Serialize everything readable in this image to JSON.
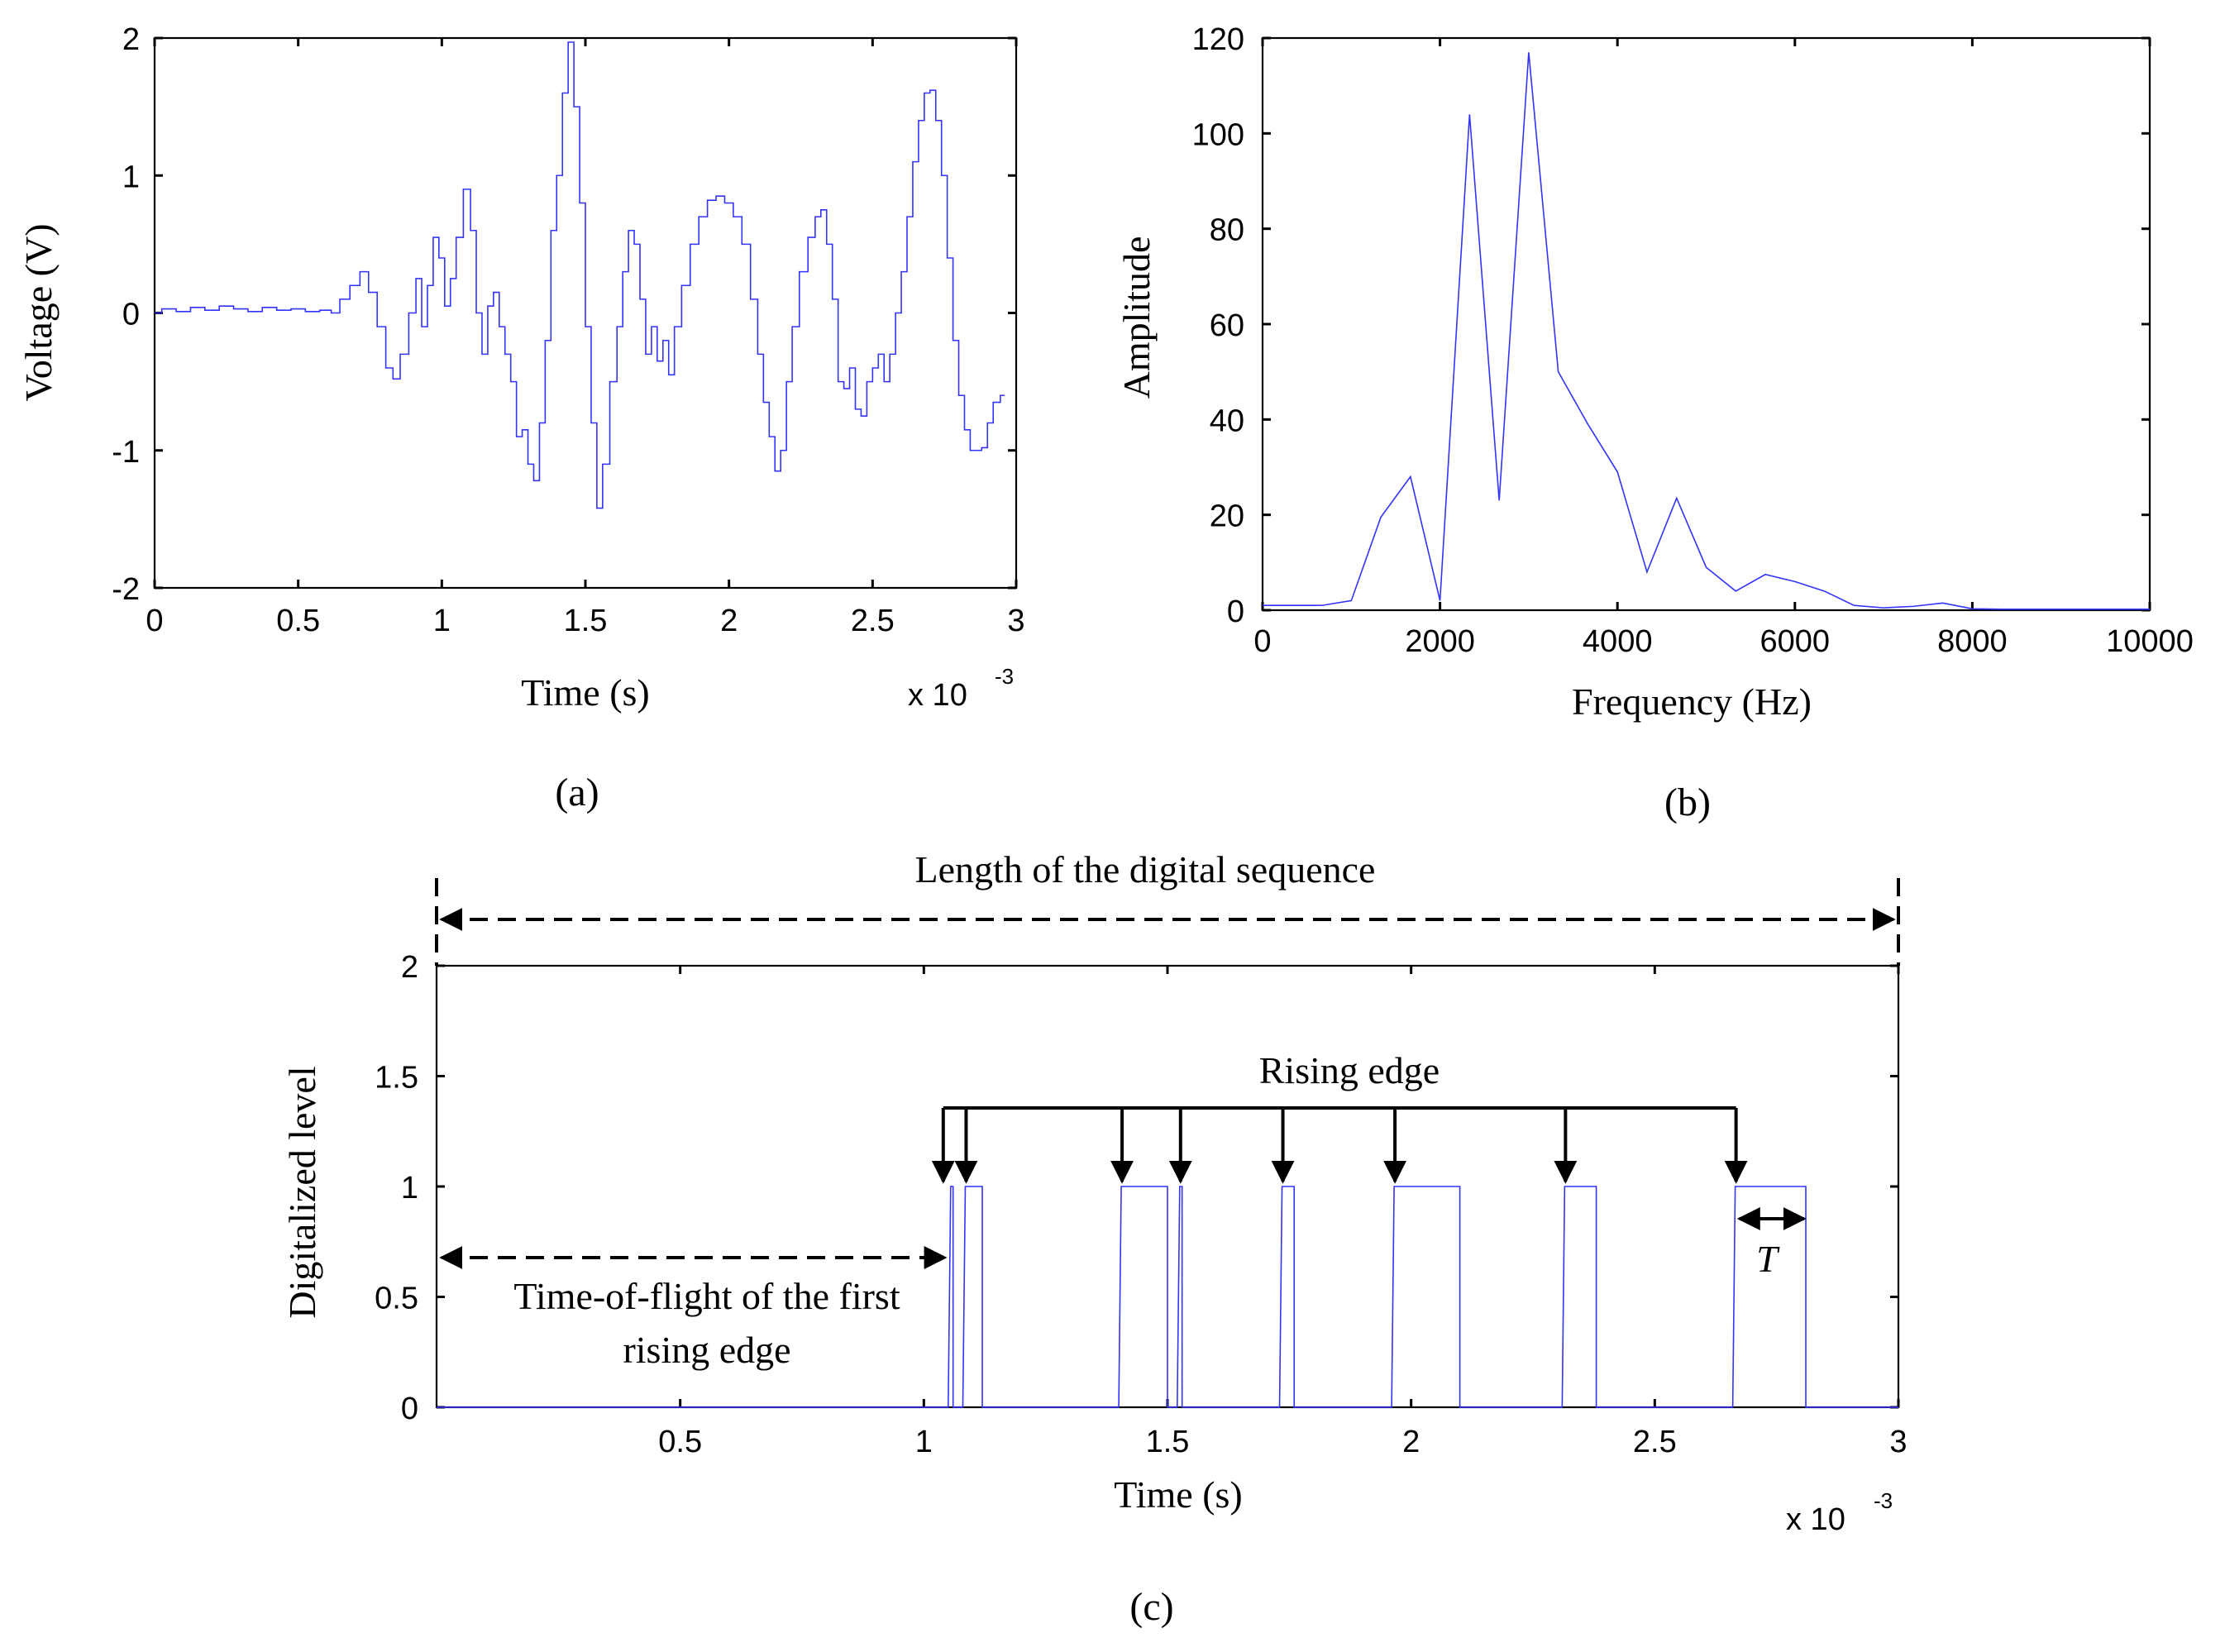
{
  "chart_data": [
    {
      "id": "a",
      "type": "line",
      "panel_label": "(a)",
      "xlabel": "Time (s)",
      "ylabel": "Voltage (V)",
      "x_exponent": {
        "base": "x 10",
        "power": "-3"
      },
      "xlim": [
        0,
        3
      ],
      "ylim": [
        -2,
        2
      ],
      "xticks": [
        0,
        0.5,
        1,
        1.5,
        2,
        2.5,
        3
      ],
      "xtick_labels": [
        "0",
        "0.5",
        "1",
        "1.5",
        "2",
        "2.5",
        "3"
      ],
      "yticks": [
        -2,
        -1,
        0,
        1,
        2
      ],
      "ytick_labels": [
        "-2",
        "-1",
        "0",
        "1",
        "2"
      ],
      "series": [
        {
          "name": "Voltage",
          "color": "#3333ff",
          "x_scale": 0.001,
          "points": [
            [
              0,
              0
            ],
            [
              0.05,
              0.03
            ],
            [
              0.1,
              0.01
            ],
            [
              0.15,
              0.04
            ],
            [
              0.2,
              0.02
            ],
            [
              0.25,
              0.05
            ],
            [
              0.3,
              0.03
            ],
            [
              0.35,
              0.01
            ],
            [
              0.4,
              0.04
            ],
            [
              0.45,
              0.02
            ],
            [
              0.5,
              0.03
            ],
            [
              0.55,
              0.01
            ],
            [
              0.6,
              0.02
            ],
            [
              0.63,
              0.0
            ],
            [
              0.66,
              0.1
            ],
            [
              0.7,
              0.2
            ],
            [
              0.73,
              0.3
            ],
            [
              0.76,
              0.15
            ],
            [
              0.79,
              -0.1
            ],
            [
              0.82,
              -0.4
            ],
            [
              0.84,
              -0.48
            ],
            [
              0.87,
              -0.3
            ],
            [
              0.9,
              0.0
            ],
            [
              0.92,
              0.25
            ],
            [
              0.94,
              -0.1
            ],
            [
              0.96,
              0.2
            ],
            [
              0.98,
              0.55
            ],
            [
              1.0,
              0.4
            ],
            [
              1.02,
              0.05
            ],
            [
              1.04,
              0.25
            ],
            [
              1.06,
              0.55
            ],
            [
              1.09,
              0.9
            ],
            [
              1.11,
              0.6
            ],
            [
              1.13,
              0.0
            ],
            [
              1.15,
              -0.3
            ],
            [
              1.17,
              0.05
            ],
            [
              1.19,
              0.15
            ],
            [
              1.21,
              -0.1
            ],
            [
              1.23,
              -0.3
            ],
            [
              1.25,
              -0.5
            ],
            [
              1.27,
              -0.9
            ],
            [
              1.29,
              -0.85
            ],
            [
              1.31,
              -1.1
            ],
            [
              1.33,
              -1.22
            ],
            [
              1.35,
              -0.8
            ],
            [
              1.37,
              -0.2
            ],
            [
              1.39,
              0.6
            ],
            [
              1.41,
              1.0
            ],
            [
              1.43,
              1.6
            ],
            [
              1.45,
              1.97
            ],
            [
              1.47,
              1.5
            ],
            [
              1.49,
              0.8
            ],
            [
              1.51,
              -0.1
            ],
            [
              1.53,
              -0.8
            ],
            [
              1.55,
              -1.42
            ],
            [
              1.57,
              -1.1
            ],
            [
              1.6,
              -0.5
            ],
            [
              1.62,
              -0.1
            ],
            [
              1.64,
              0.3
            ],
            [
              1.66,
              0.6
            ],
            [
              1.68,
              0.5
            ],
            [
              1.7,
              0.1
            ],
            [
              1.72,
              -0.3
            ],
            [
              1.74,
              -0.1
            ],
            [
              1.76,
              -0.35
            ],
            [
              1.78,
              -0.2
            ],
            [
              1.8,
              -0.45
            ],
            [
              1.82,
              -0.1
            ],
            [
              1.85,
              0.2
            ],
            [
              1.88,
              0.5
            ],
            [
              1.91,
              0.7
            ],
            [
              1.94,
              0.82
            ],
            [
              1.97,
              0.85
            ],
            [
              2.0,
              0.8
            ],
            [
              2.03,
              0.7
            ],
            [
              2.06,
              0.5
            ],
            [
              2.09,
              0.1
            ],
            [
              2.11,
              -0.3
            ],
            [
              2.13,
              -0.65
            ],
            [
              2.15,
              -0.9
            ],
            [
              2.17,
              -1.15
            ],
            [
              2.19,
              -1.0
            ],
            [
              2.21,
              -0.5
            ],
            [
              2.23,
              -0.1
            ],
            [
              2.26,
              0.3
            ],
            [
              2.29,
              0.55
            ],
            [
              2.31,
              0.7
            ],
            [
              2.33,
              0.75
            ],
            [
              2.35,
              0.5
            ],
            [
              2.37,
              0.1
            ],
            [
              2.39,
              -0.5
            ],
            [
              2.41,
              -0.55
            ],
            [
              2.43,
              -0.4
            ],
            [
              2.45,
              -0.7
            ],
            [
              2.47,
              -0.75
            ],
            [
              2.49,
              -0.5
            ],
            [
              2.51,
              -0.4
            ],
            [
              2.53,
              -0.3
            ],
            [
              2.55,
              -0.5
            ],
            [
              2.57,
              -0.3
            ],
            [
              2.59,
              0.0
            ],
            [
              2.61,
              0.3
            ],
            [
              2.63,
              0.7
            ],
            [
              2.65,
              1.1
            ],
            [
              2.67,
              1.4
            ],
            [
              2.69,
              1.6
            ],
            [
              2.71,
              1.62
            ],
            [
              2.73,
              1.4
            ],
            [
              2.75,
              1.0
            ],
            [
              2.77,
              0.4
            ],
            [
              2.79,
              -0.2
            ],
            [
              2.81,
              -0.6
            ],
            [
              2.83,
              -0.85
            ],
            [
              2.85,
              -1.0
            ],
            [
              2.87,
              -1.0
            ],
            [
              2.89,
              -0.98
            ],
            [
              2.91,
              -0.8
            ],
            [
              2.93,
              -0.65
            ],
            [
              2.96,
              -0.6
            ]
          ]
        }
      ]
    },
    {
      "id": "b",
      "type": "line",
      "panel_label": "(b)",
      "xlabel": "Frequency (Hz)",
      "ylabel": "Amplitude",
      "xlim": [
        0,
        10000
      ],
      "ylim": [
        0,
        120
      ],
      "xticks": [
        0,
        2000,
        4000,
        6000,
        8000,
        10000
      ],
      "xtick_labels": [
        "0",
        "2000",
        "4000",
        "6000",
        "8000",
        "10000"
      ],
      "yticks": [
        0,
        20,
        40,
        60,
        80,
        100,
        120
      ],
      "ytick_labels": [
        "0",
        "20",
        "40",
        "60",
        "80",
        "100",
        "120"
      ],
      "series": [
        {
          "name": "Amplitude",
          "color": "#3333ff",
          "points": [
            [
              0,
              1
            ],
            [
              333,
              1
            ],
            [
              667,
              1
            ],
            [
              1000,
              2
            ],
            [
              1333,
              19.5
            ],
            [
              1667,
              28
            ],
            [
              2000,
              2
            ],
            [
              2333,
              104
            ],
            [
              2667,
              23
            ],
            [
              3000,
              117
            ],
            [
              3333,
              50
            ],
            [
              3667,
              39
            ],
            [
              4000,
              29
            ],
            [
              4333,
              8
            ],
            [
              4667,
              23.5
            ],
            [
              5000,
              9
            ],
            [
              5333,
              4
            ],
            [
              5667,
              7.5
            ],
            [
              6000,
              6
            ],
            [
              6333,
              4
            ],
            [
              6667,
              1
            ],
            [
              7000,
              0.5
            ],
            [
              7333,
              0.8
            ],
            [
              7667,
              1.5
            ],
            [
              8000,
              0.3
            ],
            [
              8333,
              0.2
            ],
            [
              10000,
              0.2
            ]
          ]
        }
      ]
    },
    {
      "id": "c",
      "type": "line",
      "panel_label": "(c)",
      "xlabel": "Time (s)",
      "ylabel": "Digitalized level",
      "x_exponent": {
        "base": "x 10",
        "power": "-3"
      },
      "xlim": [
        0,
        3
      ],
      "ylim": [
        0,
        2
      ],
      "xticks": [
        0.5,
        1,
        1.5,
        2,
        2.5,
        3
      ],
      "xtick_labels": [
        "0.5",
        "1",
        "1.5",
        "2",
        "2.5",
        "3"
      ],
      "yticks": [
        0,
        0.5,
        1,
        1.5,
        2
      ],
      "ytick_labels": [
        "0",
        "0.5",
        "1",
        "1.5",
        "2"
      ],
      "series": [
        {
          "name": "Digital sequence",
          "color": "#3333ff",
          "x_scale": 0.001,
          "pulses": [
            [
              1.05,
              1.06
            ],
            [
              1.08,
              1.12
            ],
            [
              1.4,
              1.5
            ],
            [
              1.52,
              1.53
            ],
            [
              1.73,
              1.76
            ],
            [
              1.96,
              2.1
            ],
            [
              2.31,
              2.38
            ],
            [
              2.66,
              2.81
            ]
          ]
        }
      ],
      "rising_edges": [
        1.05,
        1.08,
        1.4,
        1.52,
        1.73,
        1.96,
        2.31,
        2.66
      ],
      "annotations": {
        "length_label": "Length of the digital sequence",
        "rising_label": "Rising edge",
        "tof_label_line1": "Time-of-flight of the first",
        "tof_label_line2": "rising edge",
        "period_label": "T"
      }
    }
  ]
}
